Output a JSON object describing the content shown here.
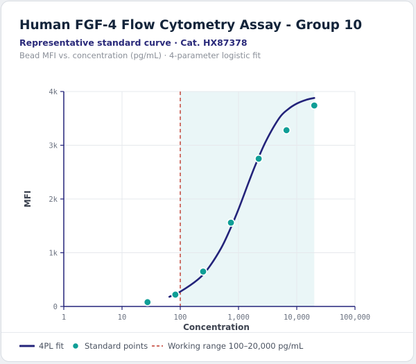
{
  "header": {
    "title": "Human FGF-4 Flow Cytometry Assay - Group 10",
    "subtitle": "Representative standard curve · Cat. HX87378",
    "caption": "Bead MFI vs. concentration (pg/mL) · 4-parameter logistic fit"
  },
  "colors": {
    "curve": "#23237a",
    "points": "#0f9e96",
    "range_line": "#c0392b",
    "range_fill": "#eaf6f7",
    "axis": "#23237a"
  },
  "chart_data": {
    "type": "scatter",
    "xlabel": "Concentration",
    "ylabel": "MFI",
    "x_scale": "log",
    "xlim": [
      1,
      100000
    ],
    "ylim": [
      0,
      4000
    ],
    "x_ticks": [
      1,
      10,
      100,
      1000,
      10000,
      100000
    ],
    "x_tick_labels": [
      "1",
      "10",
      "100",
      "1,000",
      "10,000",
      "100,000"
    ],
    "y_ticks": [
      0,
      1000,
      2000,
      3000,
      4000
    ],
    "y_tick_labels": [
      "0",
      "1k",
      "2k",
      "3k",
      "4k"
    ],
    "grid": true,
    "series": [
      {
        "name": "Standard points",
        "kind": "points",
        "x": [
          27.4,
          82.3,
          247,
          741,
          2222,
          6667,
          20000
        ],
        "y": [
          80,
          220,
          650,
          1560,
          2750,
          3280,
          3740
        ]
      },
      {
        "name": "4PL fit",
        "kind": "line",
        "x": [
          65,
          100,
          200,
          300,
          500,
          700,
          1000,
          1500,
          2000,
          3000,
          5000,
          7000,
          10000,
          15000,
          20000
        ],
        "y": [
          180,
          275,
          500,
          705,
          1080,
          1410,
          1810,
          2315,
          2660,
          3090,
          3505,
          3665,
          3775,
          3850,
          3880
        ]
      }
    ],
    "working_range": {
      "from": 100,
      "to": 20000,
      "label": "Working range 100–20,000 pg/mL"
    }
  },
  "legend": {
    "fit_label": "4PL fit",
    "points_label": "Standard points",
    "range_label": "Working range 100–20,000 pg/mL"
  }
}
